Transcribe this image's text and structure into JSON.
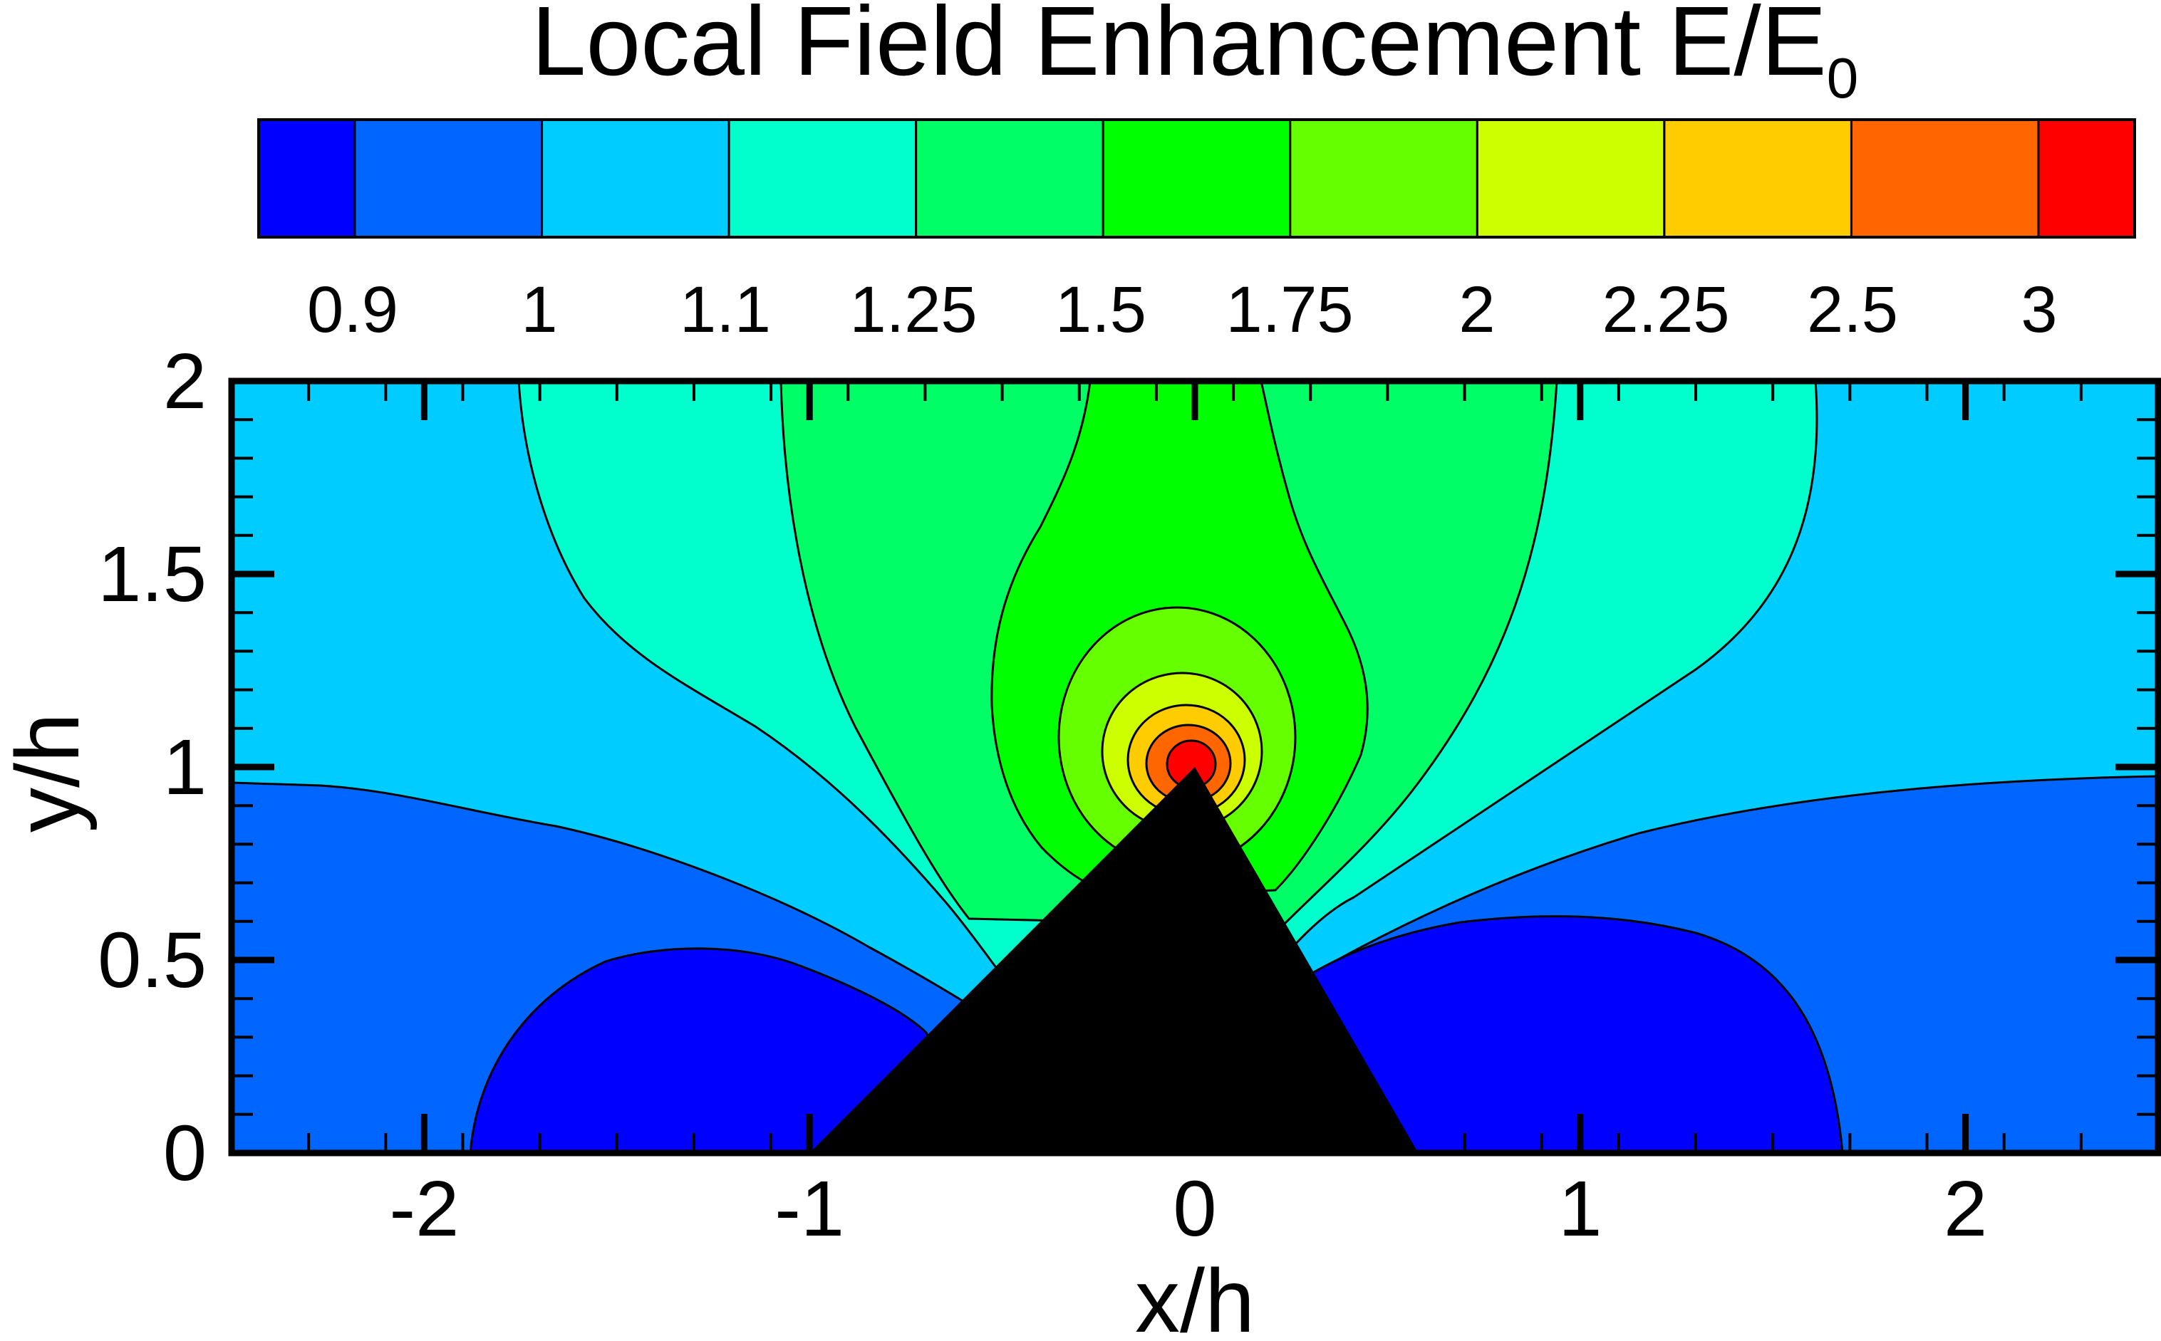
{
  "chart_data": {
    "type": "contour",
    "title": "Local Field Enhancement E/E",
    "title_subscript": "0",
    "xlabel": "x/h",
    "ylabel": "y/h",
    "xlim": [
      -2.5,
      2.5
    ],
    "ylim": [
      0,
      2
    ],
    "x_ticks": [
      -2,
      -1,
      0,
      1,
      2
    ],
    "x_tick_labels": [
      "-2",
      "-1",
      "0",
      "1",
      "2"
    ],
    "y_ticks": [
      0,
      0.5,
      1,
      1.5,
      2
    ],
    "y_tick_labels": [
      "0",
      "0.5",
      "1",
      "1.5",
      "2"
    ],
    "colorbar": {
      "levels": [
        "0.9",
        "1",
        "1.1",
        "1.25",
        "1.5",
        "1.75",
        "2",
        "2.25",
        "2.5",
        "3"
      ],
      "colors": [
        "#0000ff",
        "#0066ff",
        "#00ccff",
        "#00ffcc",
        "#00ff66",
        "#00ff00",
        "#66ff00",
        "#ccff00",
        "#ffcc00",
        "#ff6600",
        "#ff0000"
      ]
    },
    "obstacle": {
      "shape": "triangle",
      "color": "#000000",
      "vertices": [
        [
          -1.0,
          0.0
        ],
        [
          0.0,
          1.0
        ],
        [
          0.58,
          0.0
        ]
      ]
    },
    "regions": [
      {
        "level": "< 0.9",
        "description": "two lobes near base",
        "left_lobe_x": [
          -1.88,
          -0.55
        ],
        "left_lobe_ymax": 0.54,
        "right_lobe_x": [
          0.35,
          1.7
        ],
        "right_lobe_ymax": 0.61
      },
      {
        "level": "0.9-1.0",
        "boundary_y_at_edges": [
          0.97,
          0.98
        ]
      },
      {
        "level": "1.0-1.1"
      },
      {
        "level": "1.1-1.25",
        "top_x_range": [
          -1.75,
          1.65
        ]
      },
      {
        "level": "1.25-1.5",
        "top_x_range": [
          -1.05,
          0.95
        ]
      },
      {
        "level": "1.5-1.75",
        "top_x_range": [
          -0.27,
          0.18
        ],
        "peak": [
          0.0,
          1.0
        ]
      },
      {
        "level": "hot spot",
        "center": [
          0.0,
          1.0
        ],
        "max": ">3"
      }
    ]
  }
}
